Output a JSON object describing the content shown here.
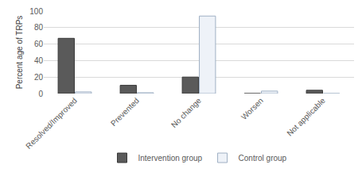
{
  "chart_data": {
    "type": "bar",
    "categories": [
      "Resolved/Improved",
      "Prevented",
      "No change",
      "Worsen",
      "Not applicable"
    ],
    "series": [
      {
        "name": "Intervention group",
        "color": "#5a5a5a",
        "values": [
          67,
          10,
          20,
          0,
          4
        ]
      },
      {
        "name": "Control group",
        "color": "#eef2f8",
        "values": [
          2,
          1,
          94,
          3,
          0
        ]
      }
    ],
    "y_label": "Percent age of TRPs",
    "ylim": [
      0,
      100
    ],
    "yticks": [
      0,
      20,
      40,
      60,
      80,
      100
    ],
    "grid": true,
    "legend": "bottom"
  }
}
